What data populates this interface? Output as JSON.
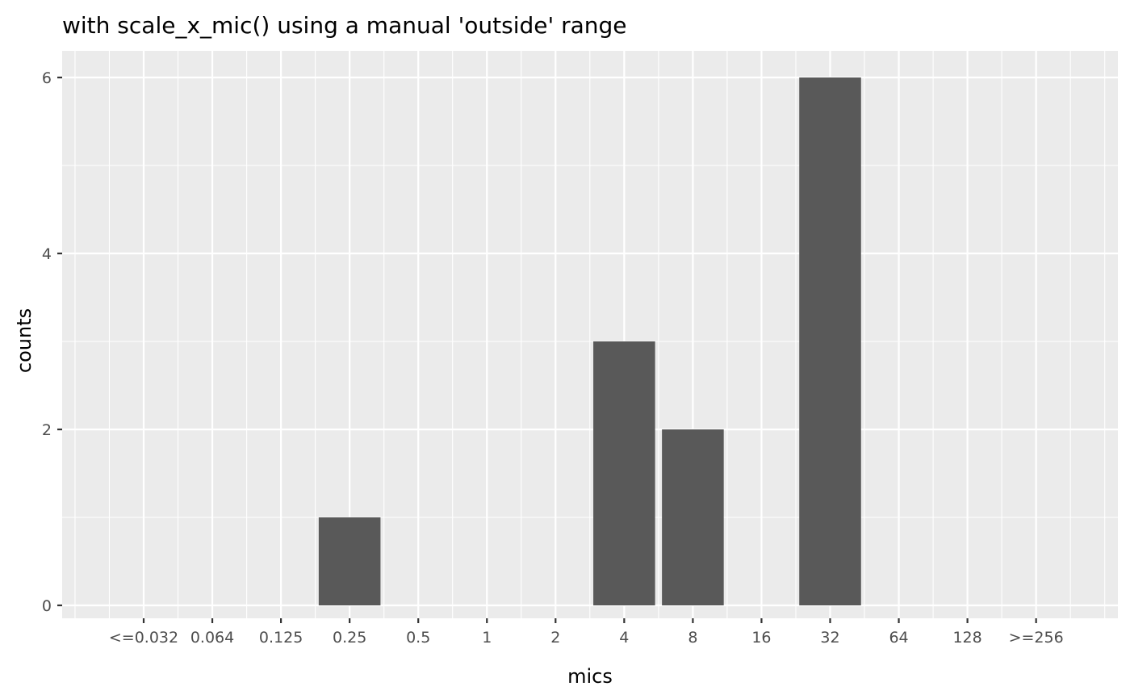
{
  "chart_data": {
    "type": "bar",
    "title": "with scale_x_mic() using a manual 'outside' range",
    "xlabel": "mics",
    "ylabel": "counts",
    "categories": [
      "<=0.032",
      "0.064",
      "0.125",
      "0.25",
      "0.5",
      "1",
      "2",
      "4",
      "8",
      "16",
      "32",
      "64",
      "128",
      ">=256"
    ],
    "values": [
      0,
      0,
      0,
      1,
      0,
      0,
      0,
      3,
      2,
      0,
      6,
      0,
      0,
      0
    ],
    "yticks": [
      0,
      2,
      4,
      6
    ],
    "ylim": [
      -0.3,
      6.3
    ],
    "grid": true,
    "colors": {
      "bar": "#595959",
      "panel": "#ebebeb",
      "grid": "#ffffff"
    }
  }
}
